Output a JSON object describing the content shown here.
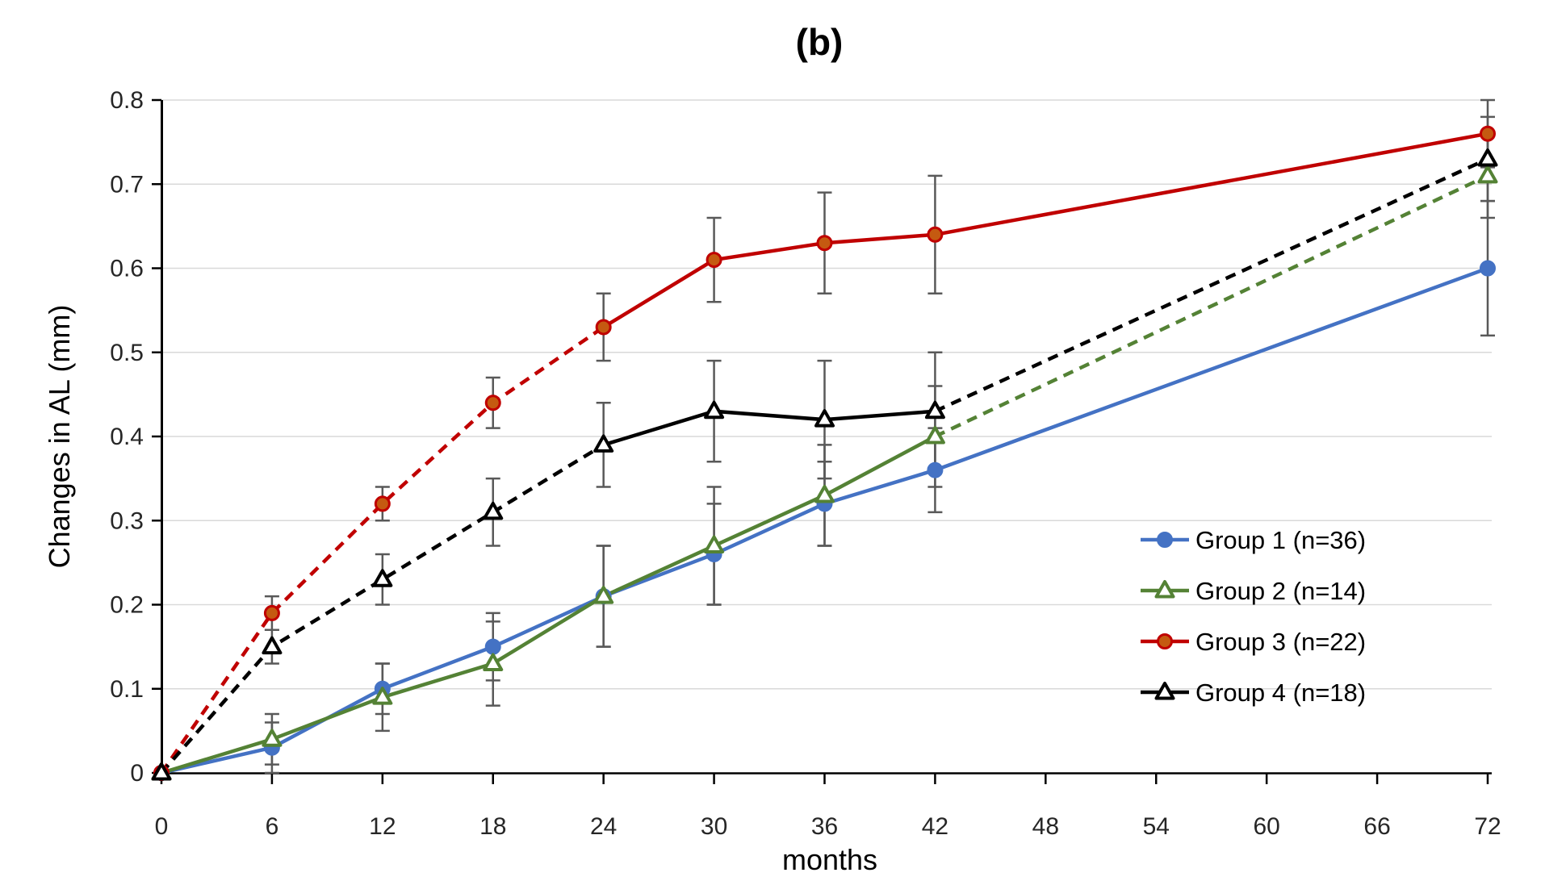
{
  "figure": {
    "panel_label": "(b)"
  },
  "chart_data": {
    "type": "line",
    "title": "(b)",
    "xlabel": "months",
    "ylabel": "Changes in AL (mm)",
    "x": [
      0,
      6,
      12,
      18,
      24,
      30,
      36,
      42,
      72
    ],
    "x_ticks": [
      0,
      6,
      12,
      18,
      24,
      30,
      36,
      42,
      48,
      54,
      60,
      66,
      72
    ],
    "xlim": [
      0,
      72
    ],
    "ylim": [
      0,
      0.8
    ],
    "y_ticks": [
      0,
      0.1,
      0.2,
      0.3,
      0.4,
      0.5,
      0.6,
      0.7,
      0.8
    ],
    "grid": "horizontal",
    "legend_position": "inside-right",
    "style": {
      "background": "#FFFFFF",
      "gridline_color": "#D9D9D9",
      "axis_color": "#000000",
      "error_bar_color": "#595959"
    },
    "series": [
      {
        "name": "Group 1 (n=36)",
        "color": "#4472C4",
        "marker": "filled-circle",
        "values": [
          0,
          0.03,
          0.1,
          0.15,
          0.21,
          0.26,
          0.32,
          0.36,
          0.6
        ],
        "errors": [
          0,
          0.03,
          0.03,
          0.04,
          0.06,
          0.06,
          0.05,
          0.05,
          0.08
        ],
        "segments": [
          {
            "from": 0,
            "to": 72,
            "style": "solid"
          }
        ]
      },
      {
        "name": "Group 2 (n=14)",
        "color": "#548235",
        "marker": "open-triangle",
        "values": [
          0,
          0.04,
          0.09,
          0.13,
          0.21,
          0.27,
          0.33,
          0.4,
          0.71
        ],
        "errors": [
          0,
          0.03,
          0.04,
          0.05,
          0.06,
          0.07,
          0.06,
          0.06,
          0.05
        ],
        "segments": [
          {
            "from": 0,
            "to": 42,
            "style": "solid"
          },
          {
            "from": 42,
            "to": 72,
            "style": "dashed"
          }
        ]
      },
      {
        "name": "Group 3 (n=22)",
        "color": "#C00000",
        "marker": "filled-circle",
        "marker_fill": "#C55A11",
        "values": [
          0,
          0.19,
          0.32,
          0.44,
          0.53,
          0.61,
          0.63,
          0.64,
          0.76
        ],
        "errors": [
          0,
          0.02,
          0.02,
          0.03,
          0.04,
          0.05,
          0.06,
          0.07,
          0.04
        ],
        "segments": [
          {
            "from": 0,
            "to": 24,
            "style": "dashed"
          },
          {
            "from": 24,
            "to": 72,
            "style": "solid"
          }
        ]
      },
      {
        "name": "Group 4 (n=18)",
        "color": "#000000",
        "marker": "open-triangle",
        "values": [
          0,
          0.15,
          0.23,
          0.31,
          0.39,
          0.43,
          0.42,
          0.43,
          0.73
        ],
        "errors": [
          0,
          0.02,
          0.03,
          0.04,
          0.05,
          0.06,
          0.07,
          0.07,
          0.05
        ],
        "segments": [
          {
            "from": 0,
            "to": 24,
            "style": "dashed"
          },
          {
            "from": 24,
            "to": 42,
            "style": "solid"
          },
          {
            "from": 42,
            "to": 72,
            "style": "dashed"
          }
        ]
      }
    ]
  }
}
